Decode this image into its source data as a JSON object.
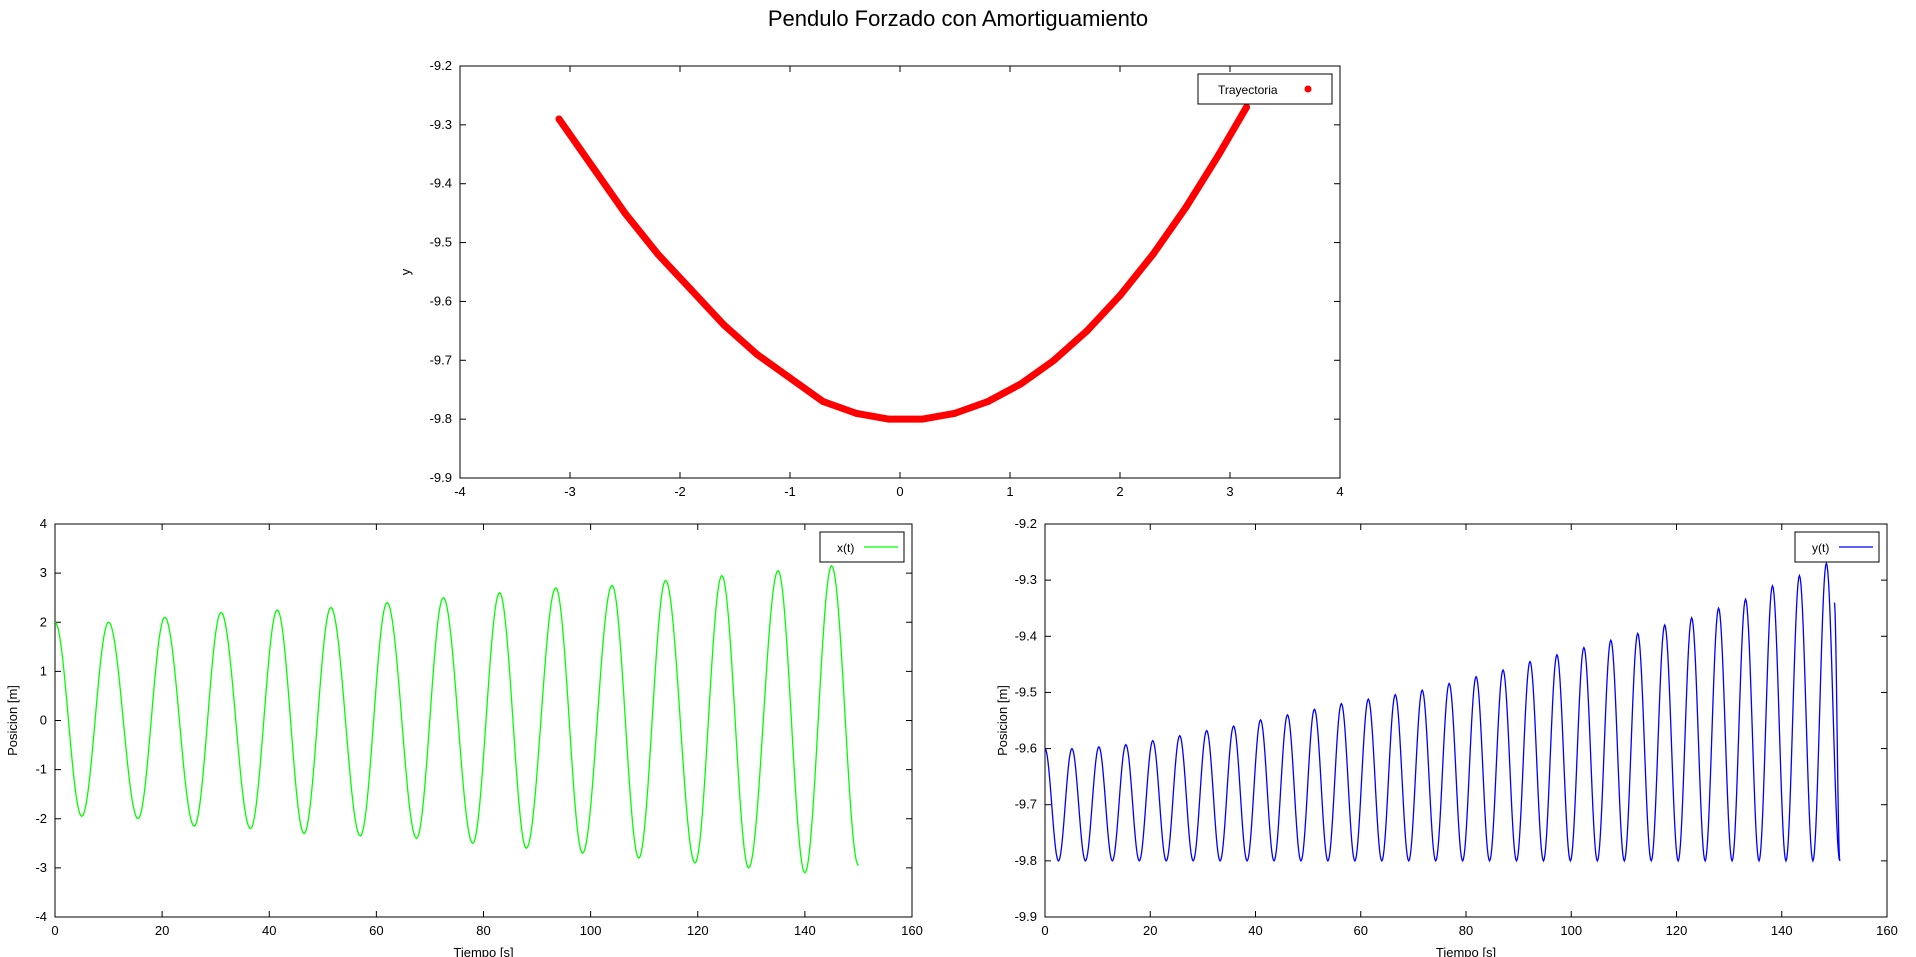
{
  "figure": {
    "title": "Pendulo Forzado con Amortiguamiento"
  },
  "chart_data": [
    {
      "name": "trajectory",
      "type": "scatter",
      "title": "",
      "xlabel": "",
      "ylabel": "y",
      "xlim": [
        -4,
        4
      ],
      "ylim": [
        -9.9,
        -9.2
      ],
      "xticks": [
        -4,
        -3,
        -2,
        -1,
        0,
        1,
        2,
        3,
        4
      ],
      "yticks": [
        -9.9,
        -9.8,
        -9.7,
        -9.6,
        -9.5,
        -9.4,
        -9.3,
        -9.2
      ],
      "grid": false,
      "legend_position": "top-right",
      "series": [
        {
          "name": "Trayectoria",
          "color": "#ff0000",
          "marker": "dot",
          "x": [
            -3.1,
            -2.8,
            -2.5,
            -2.2,
            -1.9,
            -1.6,
            -1.3,
            -1.0,
            -0.7,
            -0.4,
            -0.1,
            0.2,
            0.5,
            0.8,
            1.1,
            1.4,
            1.7,
            2.0,
            2.3,
            2.6,
            2.9,
            3.15
          ],
          "y": [
            -9.29,
            -9.37,
            -9.45,
            -9.52,
            -9.58,
            -9.64,
            -9.69,
            -9.73,
            -9.77,
            -9.79,
            -9.8,
            -9.8,
            -9.79,
            -9.77,
            -9.74,
            -9.7,
            -9.65,
            -9.59,
            -9.52,
            -9.44,
            -9.35,
            -9.27
          ]
        }
      ]
    },
    {
      "name": "x-vs-time",
      "type": "line",
      "title": "",
      "xlabel": "Tiempo [s]",
      "ylabel": "Posicion [m]",
      "xlim": [
        0,
        160
      ],
      "ylim": [
        -4,
        4
      ],
      "xticks": [
        0,
        20,
        40,
        60,
        80,
        100,
        120,
        140,
        160
      ],
      "yticks": [
        -4,
        -3,
        -2,
        -1,
        0,
        1,
        2,
        3,
        4
      ],
      "grid": false,
      "legend_position": "top-right",
      "series": [
        {
          "name": "x(t)",
          "color": "#00ff00",
          "x": [
            0,
            5,
            10,
            15.5,
            20.5,
            26,
            31,
            36.5,
            41.5,
            46.5,
            51.5,
            57,
            62,
            67.5,
            72.5,
            78,
            83,
            88,
            93.5,
            98.5,
            104,
            109,
            114,
            119.5,
            124.5,
            129.5,
            135,
            140,
            145,
            150
          ],
          "y": [
            2.0,
            -1.95,
            2.0,
            -2.0,
            2.1,
            -2.15,
            2.2,
            -2.2,
            2.25,
            -2.3,
            2.3,
            -2.35,
            2.4,
            -2.4,
            2.5,
            -2.5,
            2.6,
            -2.6,
            2.7,
            -2.7,
            2.75,
            -2.8,
            2.85,
            -2.9,
            2.95,
            -3.0,
            3.05,
            -3.1,
            3.15,
            -2.95
          ]
        }
      ]
    },
    {
      "name": "y-vs-time",
      "type": "line",
      "title": "",
      "xlabel": "Tiempo [s]",
      "ylabel": "Posicion [m]",
      "xlim": [
        0,
        160
      ],
      "ylim": [
        -9.9,
        -9.2
      ],
      "xticks": [
        0,
        20,
        40,
        60,
        80,
        100,
        120,
        140,
        160
      ],
      "yticks": [
        -9.9,
        -9.8,
        -9.7,
        -9.6,
        -9.5,
        -9.4,
        -9.3,
        -9.2
      ],
      "grid": false,
      "legend_position": "top-right",
      "series": [
        {
          "name": "y(t)",
          "color": "#0000ff",
          "start": [
            0,
            -9.6
          ],
          "period": 5.12,
          "minimum": -9.8,
          "first_min_time": 2.56,
          "peaks": [
            -9.6,
            -9.597,
            -9.593,
            -9.586,
            -9.577,
            -9.568,
            -9.56,
            -9.549,
            -9.54,
            -9.53,
            -9.52,
            -9.512,
            -9.504,
            -9.496,
            -9.484,
            -9.472,
            -9.46,
            -9.445,
            -9.433,
            -9.42,
            -9.407,
            -9.395,
            -9.38,
            -9.367,
            -9.35,
            -9.334,
            -9.31,
            -9.292,
            -9.27
          ],
          "end": [
            150,
            -9.34
          ]
        }
      ]
    }
  ]
}
